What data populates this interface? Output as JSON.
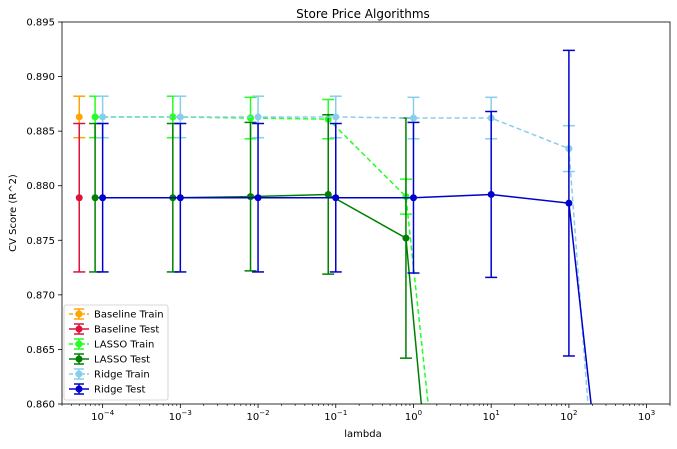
{
  "chart_data": {
    "type": "line",
    "title": "Store Price Algorithms",
    "xlabel": "lambda",
    "ylabel": "CV Score (R^2)",
    "xscale": "log",
    "xlim": [
      3e-05,
      2000
    ],
    "ylim": [
      0.86,
      0.895
    ],
    "x_ticks": [
      {
        "value": 0.0001,
        "base": "10",
        "exp": "−4"
      },
      {
        "value": 0.001,
        "base": "10",
        "exp": "−3"
      },
      {
        "value": 0.01,
        "base": "10",
        "exp": "−2"
      },
      {
        "value": 0.1,
        "base": "10",
        "exp": "−1"
      },
      {
        "value": 1,
        "base": "10",
        "exp": "0"
      },
      {
        "value": 10,
        "base": "10",
        "exp": "1"
      },
      {
        "value": 100,
        "base": "10",
        "exp": "2"
      },
      {
        "value": 1000,
        "base": "10",
        "exp": "3"
      }
    ],
    "y_ticks": [
      "0.860",
      "0.865",
      "0.870",
      "0.875",
      "0.880",
      "0.885",
      "0.890",
      "0.895"
    ],
    "legend_position": "lower-left",
    "series": [
      {
        "name": "Baseline Train",
        "color": "#FFA500",
        "dashed": true,
        "x": [
          5e-05
        ],
        "y": [
          0.8863
        ],
        "err": [
          0.0019
        ]
      },
      {
        "name": "Baseline Test",
        "color": "#DC143C",
        "dashed": false,
        "x": [
          5e-05
        ],
        "y": [
          0.8789
        ],
        "err": [
          0.0068
        ]
      },
      {
        "name": "LASSO Train",
        "color": "#22FF22",
        "dashed": true,
        "x": [
          8e-05,
          0.0008,
          0.008,
          0.08,
          0.8,
          1.6
        ],
        "y": [
          0.8863,
          0.8863,
          0.8862,
          0.8861,
          0.879,
          0.859
        ],
        "err": [
          0.0019,
          0.0019,
          0.0019,
          0.0018,
          0.0016,
          0
        ]
      },
      {
        "name": "LASSO Test",
        "color": "#008000",
        "dashed": false,
        "x": [
          8e-05,
          0.0008,
          0.008,
          0.08,
          0.8,
          1.3
        ],
        "y": [
          0.8789,
          0.8789,
          0.879,
          0.8792,
          0.8752,
          0.859
        ],
        "err": [
          0.0068,
          0.0068,
          0.0068,
          0.0073,
          0.011,
          0
        ]
      },
      {
        "name": "Ridge Train",
        "color": "#87CEEB",
        "dashed": true,
        "x": [
          0.0001,
          0.001,
          0.01,
          0.1,
          1,
          10,
          100,
          180
        ],
        "y": [
          0.8863,
          0.8863,
          0.8863,
          0.8863,
          0.8862,
          0.8862,
          0.8834,
          0.859
        ],
        "err": [
          0.0019,
          0.0019,
          0.0019,
          0.0019,
          0.0019,
          0.0019,
          0.0021,
          0
        ]
      },
      {
        "name": "Ridge Test",
        "color": "#0000CD",
        "dashed": false,
        "x": [
          0.0001,
          0.001,
          0.01,
          0.1,
          1,
          10,
          100,
          200
        ],
        "y": [
          0.8789,
          0.8789,
          0.8789,
          0.8789,
          0.8789,
          0.8792,
          0.8784,
          0.859
        ],
        "err": [
          0.0068,
          0.0068,
          0.0068,
          0.0068,
          0.0069,
          0.0076,
          0.014,
          0
        ]
      }
    ]
  }
}
